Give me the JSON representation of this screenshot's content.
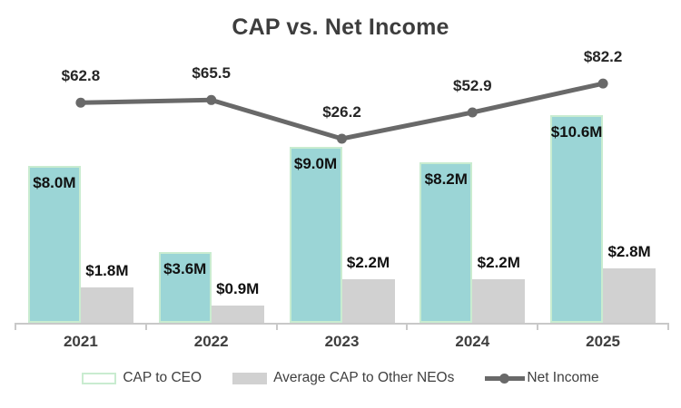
{
  "chart_data": {
    "type": "combo",
    "title": "CAP vs. Net Income",
    "categories": [
      "2021",
      "2022",
      "2023",
      "2024",
      "2025"
    ],
    "series": [
      {
        "name": "CAP to CEO",
        "type": "bar",
        "values_millions": [
          8.0,
          3.6,
          9.0,
          8.2,
          10.6
        ],
        "labels": [
          "$8.0M",
          "$3.6M",
          "$9.0M",
          "$8.2M",
          "$10.6M"
        ],
        "color": "#9bd5d6",
        "border_color": "#c9ecd0",
        "label_position": "inside-top"
      },
      {
        "name": "Average CAP to Other NEOs",
        "type": "bar",
        "values_millions": [
          1.8,
          0.9,
          2.2,
          2.2,
          2.8
        ],
        "labels": [
          "$1.8M",
          "$0.9M",
          "$2.2M",
          "$2.2M",
          "$2.8M"
        ],
        "color": "#d1d1d1",
        "label_position": "outside-top"
      },
      {
        "name": "Net Income",
        "type": "line",
        "values": [
          62.8,
          65.5,
          26.2,
          52.9,
          82.2
        ],
        "labels": [
          "$62.8",
          "$65.5",
          "$26.2",
          "$52.9",
          "$82.2"
        ],
        "color": "#696969",
        "marker": "circle"
      }
    ],
    "legend_position": "bottom",
    "axes": {
      "x_axis_visible": true,
      "x_axis_color": "#c9c9c9",
      "y_axis_visible": false,
      "gridlines": false
    },
    "text_colors": {
      "title": "#3d3d3d",
      "data_labels": "#111111",
      "axis_labels": "#3f3f3f",
      "legend": "#3f3f3f"
    }
  }
}
